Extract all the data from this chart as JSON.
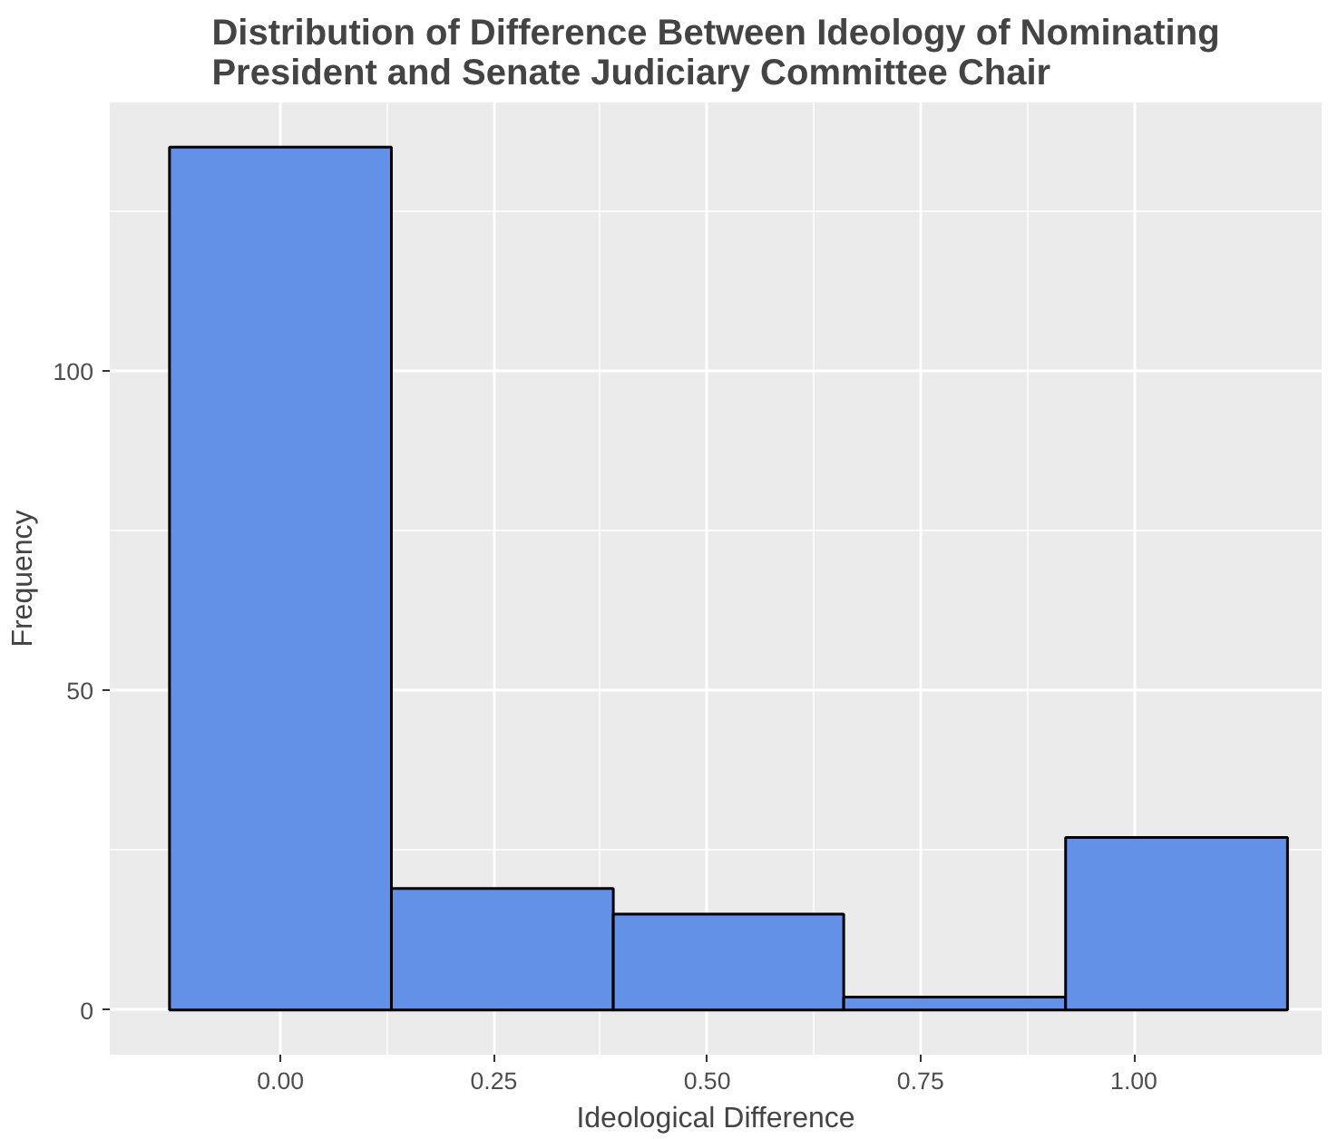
{
  "chart_data": {
    "type": "histogram",
    "title": "Distribution of Difference Between Ideology of Nominating\nPresident and Senate Judiciary Committee Chair",
    "xlabel": "Ideological Difference",
    "ylabel": "Frequency",
    "bins": [
      -0.13,
      0.13,
      0.39,
      0.66,
      0.92,
      1.18
    ],
    "values": [
      135,
      19,
      15,
      2,
      27
    ],
    "color": "#6391e8",
    "xlim": [
      -0.2,
      1.22
    ],
    "ylim": [
      -7,
      142
    ],
    "xticks": [
      {
        "value": 0,
        "label": "0.00"
      },
      0.25,
      {
        "value": 0.5,
        "label": "0.50"
      },
      0.75,
      {
        "value": 1,
        "label": "1.00"
      }
    ],
    "yticks": [
      0,
      50,
      100
    ],
    "grid": true
  }
}
